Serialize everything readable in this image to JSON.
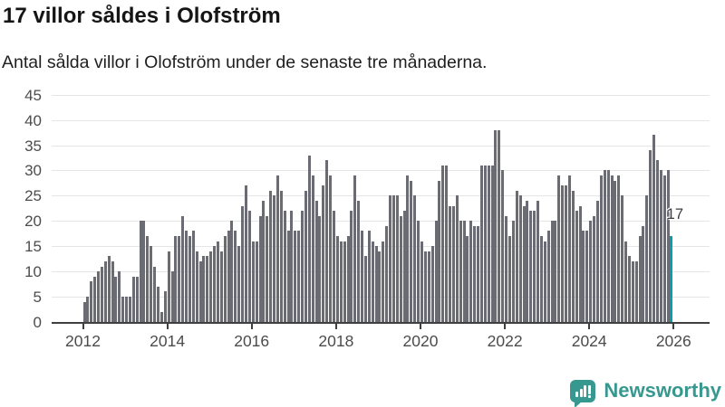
{
  "header": {
    "title": "17 villor såldes i Olofström",
    "subtitle": "Antal sålda villor i Olofström under de senaste tre månaderna."
  },
  "chart_data": {
    "type": "bar",
    "title": "17 villor såldes i Olofström",
    "subtitle": "Antal sålda villor i Olofström under de senaste tre månaderna.",
    "unit": "antal sålda villor (rullande 3 månader)",
    "x_tick_labels": [
      "2012",
      "2014",
      "2016",
      "2018",
      "2020",
      "2022",
      "2024",
      "2026"
    ],
    "y_ticks": [
      0,
      5,
      10,
      15,
      20,
      25,
      30,
      35,
      40,
      45
    ],
    "ylim": [
      0,
      45
    ],
    "grid": true,
    "x_monthly_start": "2012-01",
    "x_monthly_end": "2025-12",
    "series": [
      {
        "name": "Sålda villor i Olofström",
        "by_year": [
          {
            "year": 2012,
            "values": [
              4,
              5,
              8,
              9,
              10,
              11,
              12,
              13,
              12,
              9,
              10,
              5
            ]
          },
          {
            "year": 2013,
            "values": [
              5,
              5,
              9,
              9,
              20,
              20,
              17,
              15,
              11,
              7,
              2,
              6
            ]
          },
          {
            "year": 2014,
            "values": [
              14,
              10,
              17,
              17,
              21,
              18,
              17,
              18,
              14,
              12,
              13,
              13
            ]
          },
          {
            "year": 2015,
            "values": [
              14,
              15,
              16,
              14,
              17,
              18,
              20,
              18,
              15,
              23,
              27,
              22
            ]
          },
          {
            "year": 2016,
            "values": [
              16,
              16,
              21,
              24,
              21,
              26,
              25,
              29,
              26,
              22,
              18,
              22
            ]
          },
          {
            "year": 2017,
            "values": [
              18,
              18,
              22,
              26,
              33,
              29,
              24,
              21,
              27,
              32,
              29,
              22
            ]
          },
          {
            "year": 2018,
            "values": [
              17,
              16,
              16,
              17,
              22,
              29,
              24,
              18,
              13,
              18,
              16,
              15
            ]
          },
          {
            "year": 2019,
            "values": [
              14,
              16,
              19,
              25,
              25,
              25,
              21,
              22,
              29,
              28,
              25,
              20
            ]
          },
          {
            "year": 2020,
            "values": [
              16,
              14,
              14,
              15,
              20,
              28,
              31,
              31,
              23,
              23,
              25,
              20
            ]
          },
          {
            "year": 2021,
            "values": [
              20,
              17,
              20,
              19,
              19,
              31,
              31,
              31,
              31,
              38,
              38,
              30
            ]
          },
          {
            "year": 2022,
            "values": [
              21,
              17,
              20,
              26,
              25,
              23,
              24,
              22,
              22,
              24,
              17,
              16
            ]
          },
          {
            "year": 2023,
            "values": [
              18,
              20,
              20,
              29,
              27,
              27,
              29,
              26,
              22,
              23,
              18,
              18
            ]
          },
          {
            "year": 2024,
            "values": [
              20,
              21,
              24,
              29,
              30,
              30,
              29,
              28,
              29,
              25,
              16,
              13
            ]
          },
          {
            "year": 2025,
            "values": [
              12,
              12,
              17,
              19,
              25,
              34,
              37,
              32,
              30,
              29,
              30,
              17
            ]
          }
        ]
      }
    ],
    "highlight": {
      "month_index": 167,
      "value": 17,
      "label": "17"
    }
  },
  "colors": {
    "bar": "#6b6b73",
    "highlight_bar": "#00a3ab",
    "gridline": "#e5e5e5",
    "axis": "#3f3f3f",
    "axis_text": "#4c4c4c",
    "brand_teal": "#379890"
  },
  "footer": {
    "brand": "Newsworthy"
  }
}
